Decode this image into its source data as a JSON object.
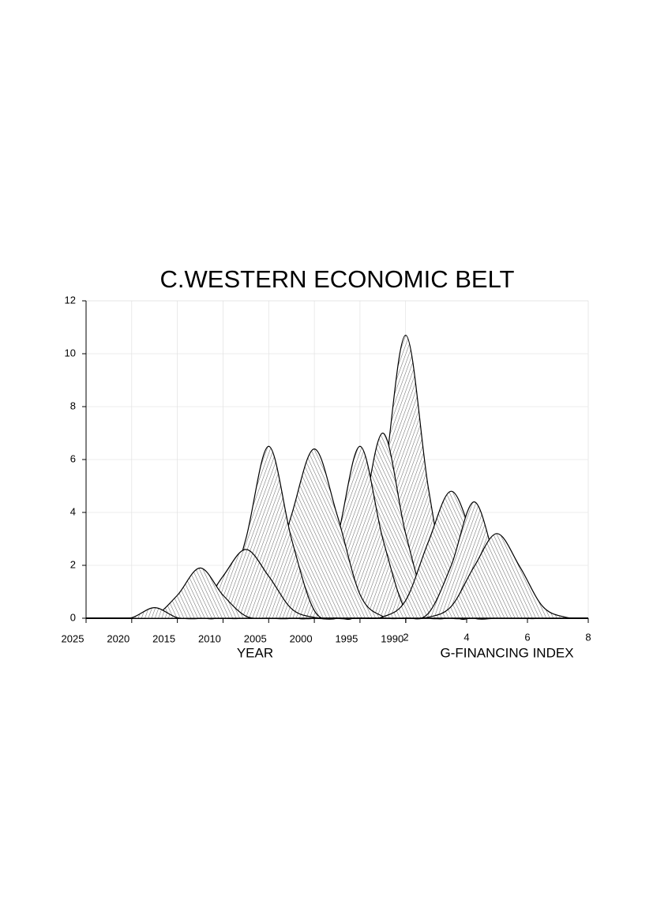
{
  "chart_data": {
    "type": "ridgeline",
    "title": "C.WESTERN ECONOMIC BELT",
    "x_label": "YEAR",
    "x2_label": "G-FINANCING INDEX",
    "xlim": [
      2025,
      1970
    ],
    "xticks": [
      2025,
      2020,
      2015,
      2010,
      2005,
      2000,
      1995,
      1990
    ],
    "x2lim": [
      2,
      8
    ],
    "x2ticks": [
      2,
      4,
      6,
      8
    ],
    "ylim": [
      0,
      12
    ],
    "yticks": [
      0,
      2,
      4,
      6,
      8,
      10,
      12
    ],
    "grid": true,
    "color": "#000000",
    "x": [
      2025,
      2022.5,
      2020,
      2017.5,
      2015,
      2012.5,
      2010,
      2007.5,
      2005,
      2002.5,
      2000,
      1997.5,
      1995,
      1992.5,
      1990,
      1987.5,
      1985,
      1982.5,
      1980,
      1977.5,
      1975,
      1972.5,
      1970
    ],
    "series": [
      {
        "values": [
          0,
          0,
          0,
          0,
          0,
          0,
          0,
          0,
          0,
          0,
          0,
          0,
          0.47,
          4.9,
          10.7,
          4.9,
          0.47,
          0,
          0,
          0,
          0,
          0,
          0
        ]
      },
      {
        "values": [
          0,
          0,
          0,
          0,
          0,
          0,
          0,
          0,
          0,
          0,
          0,
          0.31,
          3.2,
          7.0,
          3.2,
          0.31,
          0,
          0,
          0,
          0,
          0,
          0,
          0
        ]
      },
      {
        "values": [
          0,
          0,
          0,
          0,
          0,
          0,
          0,
          0,
          0,
          0,
          0.29,
          3.0,
          6.5,
          3.0,
          0.29,
          0,
          0,
          0,
          0,
          0,
          0,
          0,
          0
        ]
      },
      {
        "values": [
          0,
          0,
          0,
          0,
          0,
          0,
          0,
          0.07,
          0.9,
          3.9,
          6.4,
          3.9,
          0.9,
          0.07,
          0,
          0,
          0,
          0,
          0,
          0,
          0,
          0,
          0
        ]
      },
      {
        "values": [
          0,
          0,
          0,
          0,
          0,
          0,
          0.29,
          3.0,
          6.5,
          3.0,
          0.29,
          0,
          0,
          0,
          0,
          0,
          0,
          0,
          0,
          0,
          0,
          0,
          0
        ]
      },
      {
        "values": [
          0,
          0,
          0,
          0,
          0,
          0,
          0,
          0,
          0,
          0,
          0,
          0,
          0,
          0.05,
          0.67,
          2.9,
          4.8,
          2.9,
          0.67,
          0.05,
          0,
          0,
          0
        ]
      },
      {
        "values": [
          0,
          0,
          0,
          0,
          0,
          0,
          0,
          0,
          0,
          0,
          0,
          0,
          0,
          0,
          0,
          0.19,
          2.0,
          4.4,
          2.0,
          0.19,
          0,
          0,
          0
        ]
      },
      {
        "values": [
          0,
          0,
          0,
          0,
          0,
          0,
          0,
          0,
          0,
          0,
          0,
          0,
          0,
          0,
          0,
          0.04,
          0.45,
          1.95,
          3.2,
          1.95,
          0.45,
          0.04,
          0
        ]
      },
      {
        "values": [
          0,
          0,
          0,
          0,
          0.03,
          0.36,
          1.59,
          2.6,
          1.59,
          0.36,
          0.03,
          0,
          0,
          0,
          0,
          0,
          0,
          0,
          0,
          0,
          0,
          0,
          0
        ]
      },
      {
        "values": [
          0,
          0,
          0,
          0.08,
          0.87,
          1.9,
          0.87,
          0.08,
          0,
          0,
          0,
          0,
          0,
          0,
          0,
          0,
          0,
          0,
          0,
          0,
          0,
          0,
          0
        ]
      },
      {
        "values": [
          0,
          0,
          0.02,
          0.4,
          0.02,
          0,
          0,
          0,
          0,
          0,
          0,
          0,
          0,
          0,
          0,
          0,
          0,
          0,
          0,
          0,
          0,
          0,
          0
        ]
      }
    ]
  }
}
